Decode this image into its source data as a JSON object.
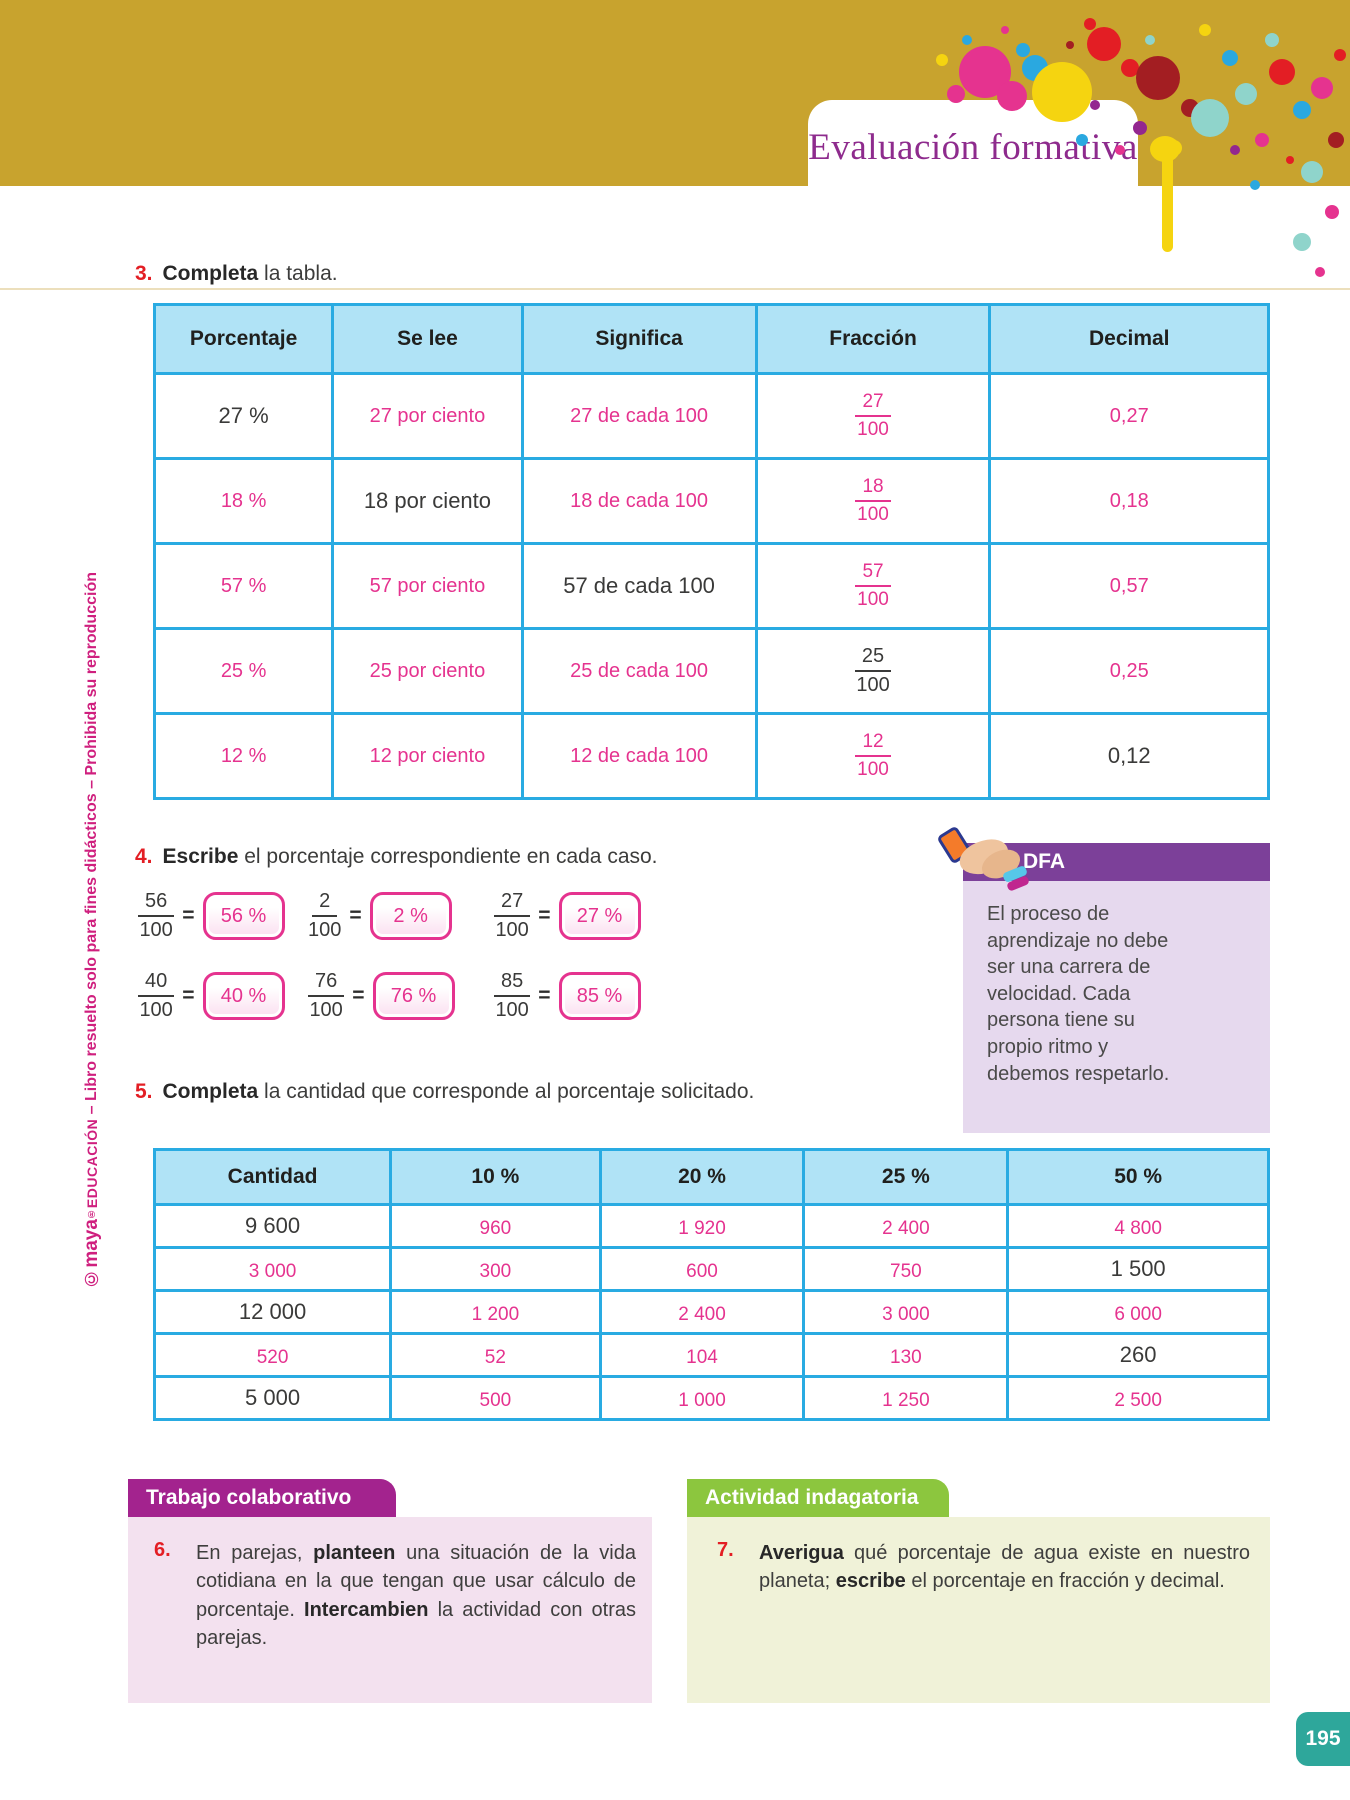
{
  "header": {
    "title": "Evaluación formativa"
  },
  "sidebar": {
    "logo": "©maya",
    "reg": "®",
    "brand": "EDUCACIÓN",
    "rest": " – Libro resuelto solo para fines didácticos – Prohibida su reproducción"
  },
  "ex3": {
    "number": "3.",
    "runs": [
      {
        "t": "Completa",
        "b": true
      },
      {
        "t": " la tabla.",
        "b": false
      }
    ]
  },
  "table3": {
    "headers": [
      "Porcentaje",
      "Se lee",
      "Significa",
      "Fracción",
      "Decimal"
    ],
    "col_widths": [
      "16%",
      "17%",
      "21%",
      "21%",
      "25%"
    ],
    "rows": [
      [
        {
          "t": "27 %",
          "s": "printed"
        },
        {
          "t": "27 por ciento",
          "s": "answer"
        },
        {
          "t": "27 de cada 100",
          "s": "answer"
        },
        {
          "f": {
            "n": "27",
            "d": "100"
          },
          "s": "answer"
        },
        {
          "t": "0,27",
          "s": "answer"
        }
      ],
      [
        {
          "t": "18 %",
          "s": "answer"
        },
        {
          "t": "18 por ciento",
          "s": "printed"
        },
        {
          "t": "18 de cada 100",
          "s": "answer"
        },
        {
          "f": {
            "n": "18",
            "d": "100"
          },
          "s": "answer"
        },
        {
          "t": "0,18",
          "s": "answer"
        }
      ],
      [
        {
          "t": "57 %",
          "s": "answer"
        },
        {
          "t": "57 por ciento",
          "s": "answer"
        },
        {
          "t": "57 de cada 100",
          "s": "printed"
        },
        {
          "f": {
            "n": "57",
            "d": "100"
          },
          "s": "answer"
        },
        {
          "t": "0,57",
          "s": "answer"
        }
      ],
      [
        {
          "t": "25 %",
          "s": "answer"
        },
        {
          "t": "25 por ciento",
          "s": "answer"
        },
        {
          "t": "25 de cada 100",
          "s": "answer"
        },
        {
          "f": {
            "n": "25",
            "d": "100"
          },
          "s": "printed"
        },
        {
          "t": "0,25",
          "s": "answer"
        }
      ],
      [
        {
          "t": "12 %",
          "s": "answer"
        },
        {
          "t": "12 por ciento",
          "s": "answer"
        },
        {
          "t": "12 de cada 100",
          "s": "answer"
        },
        {
          "f": {
            "n": "12",
            "d": "100"
          },
          "s": "answer"
        },
        {
          "t": "0,12",
          "s": "printed"
        }
      ]
    ]
  },
  "ex4": {
    "number": "4.",
    "runs": [
      {
        "t": "Escribe",
        "b": true
      },
      {
        "t": " el porcentaje correspondiente en cada caso.",
        "b": false
      }
    ],
    "items": [
      {
        "n": "56",
        "d": "100",
        "ans": "56 %"
      },
      {
        "n": "2",
        "d": "100",
        "ans": "2 %"
      },
      {
        "n": "27",
        "d": "100",
        "ans": "27 %"
      },
      {
        "n": "40",
        "d": "100",
        "ans": "40 %"
      },
      {
        "n": "76",
        "d": "100",
        "ans": "76 %"
      },
      {
        "n": "85",
        "d": "100",
        "ans": "85 %"
      }
    ]
  },
  "dfa": {
    "label": "DFA",
    "text": "El proceso de aprendizaje no debe ser una carrera de velocidad. Cada persona tiene su propio ritmo y debemos respetarlo."
  },
  "ex5": {
    "number": "5.",
    "runs": [
      {
        "t": "Completa",
        "b": true
      },
      {
        "t": " la cantidad que corresponde al porcentaje solicitado.",
        "b": false
      }
    ]
  },
  "table5": {
    "headers": [
      "Cantidad",
      "10 %",
      "20 %",
      "25 %",
      "50 %"
    ],
    "col_widths": [
      "21.2%",
      "18.8%",
      "18.3%",
      "18.3%",
      "23.4%"
    ],
    "rows": [
      [
        {
          "t": "9 600",
          "s": "printed"
        },
        {
          "t": "960",
          "s": "answer"
        },
        {
          "t": "1 920",
          "s": "answer"
        },
        {
          "t": "2 400",
          "s": "answer"
        },
        {
          "t": "4 800",
          "s": "answer"
        }
      ],
      [
        {
          "t": "3 000",
          "s": "answer"
        },
        {
          "t": "300",
          "s": "answer"
        },
        {
          "t": "600",
          "s": "answer"
        },
        {
          "t": "750",
          "s": "answer"
        },
        {
          "t": "1 500",
          "s": "printed"
        }
      ],
      [
        {
          "t": "12 000",
          "s": "printed"
        },
        {
          "t": "1 200",
          "s": "answer"
        },
        {
          "t": "2 400",
          "s": "answer"
        },
        {
          "t": "3 000",
          "s": "answer"
        },
        {
          "t": "6 000",
          "s": "answer"
        }
      ],
      [
        {
          "t": "520",
          "s": "answer"
        },
        {
          "t": "52",
          "s": "answer"
        },
        {
          "t": "104",
          "s": "answer"
        },
        {
          "t": "130",
          "s": "answer"
        },
        {
          "t": "260",
          "s": "printed"
        }
      ],
      [
        {
          "t": "5 000",
          "s": "printed"
        },
        {
          "t": "500",
          "s": "answer"
        },
        {
          "t": "1 000",
          "s": "answer"
        },
        {
          "t": "1 250",
          "s": "answer"
        },
        {
          "t": "2 500",
          "s": "answer"
        }
      ]
    ]
  },
  "collab": {
    "tab": "Trabajo colaborativo",
    "number": "6.",
    "runs": [
      {
        "t": "En parejas, ",
        "b": false
      },
      {
        "t": "planteen",
        "b": true
      },
      {
        "t": " una situación de la vida cotidiana en la que tengan que usar cálculo de porcentaje. ",
        "b": false
      },
      {
        "t": "Intercambien",
        "b": true
      },
      {
        "t": " la actividad con otras parejas.",
        "b": false
      }
    ]
  },
  "inquiry": {
    "tab": "Actividad indagatoria",
    "number": "7.",
    "runs": [
      {
        "t": "Averigua",
        "b": true
      },
      {
        "t": " qué porcentaje de agua existe en nuestro planeta; ",
        "b": false
      },
      {
        "t": "escribe",
        "b": true
      },
      {
        "t": " el porcentaje en fracción y decimal.",
        "b": false
      }
    ]
  },
  "footer": {
    "page_number": "195"
  },
  "colors": {
    "accent_pink": "#e5338f",
    "table_border": "#29abe2",
    "table_header_bg": "#b0e3f6",
    "band_gold": "#c8a32e",
    "title_purple": "#8e2b8d",
    "dfa_purple": "#7c4099",
    "dfa_body": "#e6d9ee",
    "collab_magenta": "#a3238e",
    "collab_body": "#f3e1ef",
    "inquiry_green": "#8cc63e",
    "inquiry_body": "#f0f2d8",
    "page_tab_teal": "#2ea79b",
    "number_red": "#e31e24"
  }
}
